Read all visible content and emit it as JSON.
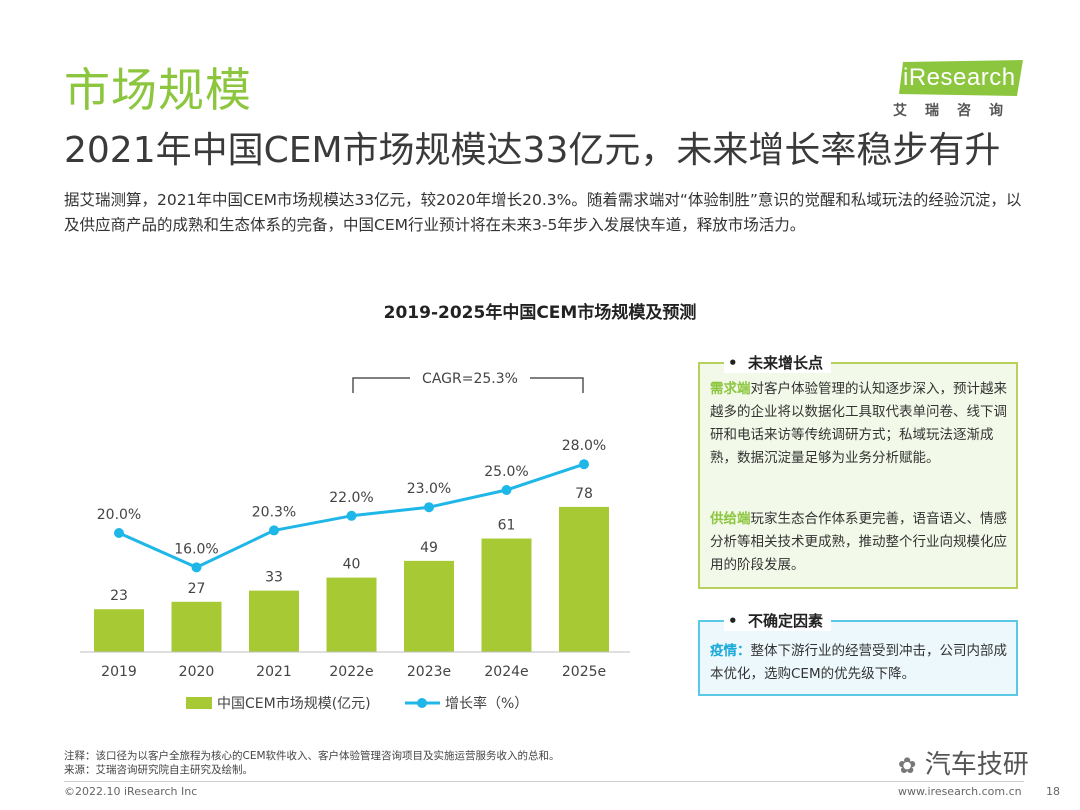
{
  "page": {
    "section_title": "市场规模",
    "headline": "2021年中国CEM市场规模达33亿元，未来增长率稳步有升",
    "summary": "据艾瑞测算，2021年中国CEM市场规模达33亿元，较2020年增长20.3%。随着需求端对“体验制胜”意识的觉醒和私域玩法的经验沉淀，以及供应商产品的成熟和生态体系的完备，中国CEM行业预计将在未来3-5年步入发展快车道，释放市场活力。"
  },
  "logo": {
    "text": "iResearch",
    "cn": "艾瑞咨询"
  },
  "chart_data": {
    "type": "bar",
    "title": "2019-2025年中国CEM市场规模及预测",
    "categories": [
      "2019",
      "2020",
      "2021",
      "2022e",
      "2023e",
      "2024e",
      "2025e"
    ],
    "series": [
      {
        "name": "中国CEM市场规模(亿元)",
        "type": "bar",
        "values": [
          23,
          27,
          33,
          40,
          49,
          61,
          78
        ],
        "labels": [
          "23",
          "27",
          "33",
          "40",
          "49",
          "61",
          "78"
        ],
        "color": "#a6c934"
      },
      {
        "name": "增长率（%）",
        "type": "line",
        "values": [
          20.0,
          16.0,
          20.3,
          22.0,
          23.0,
          25.0,
          28.0
        ],
        "labels": [
          "20.0%",
          "16.0%",
          "20.3%",
          "22.0%",
          "23.0%",
          "25.0%",
          "28.0%"
        ],
        "color": "#1fb6e8"
      }
    ],
    "annotation": "CAGR=25.3%",
    "legend_position": "bottom"
  },
  "growth_box": {
    "heading": "未来增长点",
    "demand_kw": "需求端",
    "demand_text": "对客户体验管理的认知逐步深入，预计越来越多的企业将以数据化工具取代表单问卷、线下调研和电话来访等传统调研方式；私域玩法逐渐成熟，数据沉淀量足够为业务分析赋能。",
    "supply_kw": "供给端",
    "supply_text": "玩家生态合作体系更完善，语音语义、情感分析等相关技术更成熟，推动整个行业向规模化应用的阶段发展。"
  },
  "risk_box": {
    "heading": "不确定因素",
    "kw": "疫情：",
    "text": "整体下游行业的经营受到冲击，公司内部成本优化，选购CEM的优先级下降。"
  },
  "footer": {
    "note": "注释：该口径为以客户全旅程为核心的CEM软件收入、客户体验管理咨询项目及实施运营服务收入的总和。",
    "source": "来源：艾瑞咨询研究院自主研究及绘制。",
    "copyright": "©2022.10 iResearch Inc",
    "website": "www.iresearch.com.cn",
    "page_number": "18",
    "watermark": "汽车技研"
  }
}
